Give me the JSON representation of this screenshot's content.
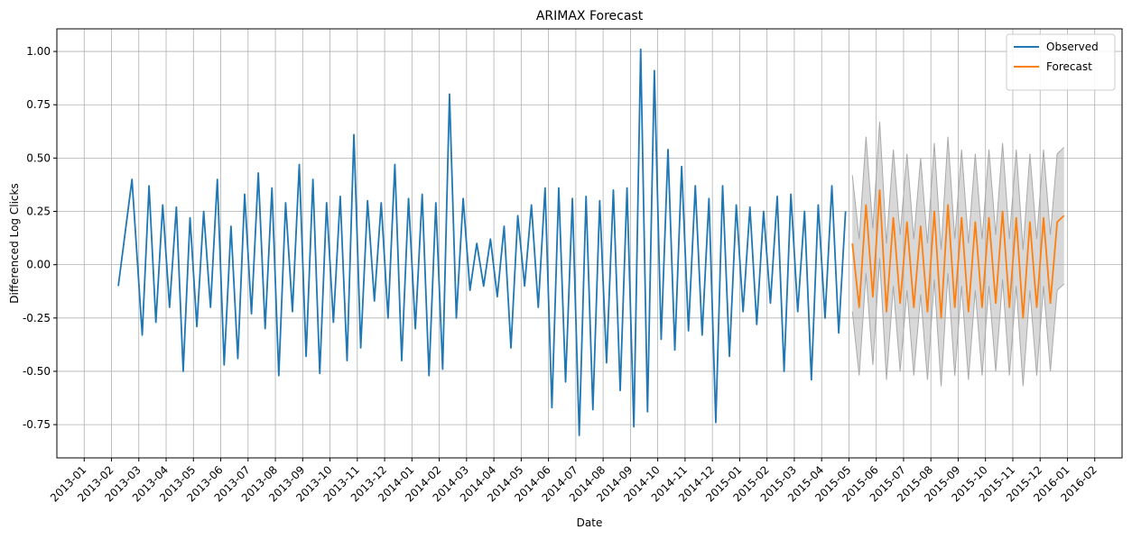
{
  "chart_data": {
    "type": "line",
    "title": "ARIMAX Forecast",
    "x_label": "Date",
    "y_label": "Differenced Log Clicks",
    "xlim": [
      "2012-12",
      "2016-03"
    ],
    "xticks": [
      "2013-01",
      "2013-02",
      "2013-03",
      "2013-04",
      "2013-05",
      "2013-06",
      "2013-07",
      "2013-08",
      "2013-09",
      "2013-10",
      "2013-11",
      "2013-12",
      "2014-01",
      "2014-02",
      "2014-03",
      "2014-04",
      "2014-05",
      "2014-06",
      "2014-07",
      "2014-08",
      "2014-09",
      "2014-10",
      "2014-11",
      "2014-12",
      "2015-01",
      "2015-02",
      "2015-03",
      "2015-04",
      "2015-05",
      "2015-06",
      "2015-07",
      "2015-08",
      "2015-09",
      "2015-10",
      "2015-11",
      "2015-12",
      "2016-01",
      "2016-02"
    ],
    "ylim": [
      -0.906,
      1.106
    ],
    "yticks": [
      -0.75,
      {
        "value": -0.5,
        "label": "-0.50"
      },
      -0.25,
      {
        "value": 0,
        "label": "0.00"
      },
      0.25,
      {
        "value": 0.5,
        "label": "0.50"
      },
      0.75,
      {
        "value": 1,
        "label": "1.00"
      }
    ],
    "grid": true,
    "legend": "upper right",
    "series": [
      {
        "name": "Observed",
        "color": "#1f77b4",
        "x": [
          "2013-02",
          "2013-02",
          "2013-03",
          "2013-03",
          "2013-03",
          "2013-03",
          "2013-04",
          "2013-04",
          "2013-04",
          "2013-04",
          "2013-05",
          "2013-05",
          "2013-05",
          "2013-05",
          "2013-06",
          "2013-06",
          "2013-06",
          "2013-06",
          "2013-07",
          "2013-07",
          "2013-07",
          "2013-07",
          "2013-08",
          "2013-08",
          "2013-08",
          "2013-08",
          "2013-09",
          "2013-09",
          "2013-09",
          "2013-09",
          "2013-10",
          "2013-10",
          "2013-10",
          "2013-10",
          "2013-11",
          "2013-11",
          "2013-11",
          "2013-11",
          "2013-12",
          "2013-12",
          "2013-12",
          "2013-12",
          "2014-01",
          "2014-01",
          "2014-01",
          "2014-01",
          "2014-02",
          "2014-02",
          "2014-02",
          "2014-02",
          "2014-03",
          "2014-03",
          "2014-03",
          "2014-03",
          "2014-04",
          "2014-04",
          "2014-04",
          "2014-04",
          "2014-05",
          "2014-05",
          "2014-05",
          "2014-05",
          "2014-06",
          "2014-06",
          "2014-06",
          "2014-06",
          "2014-07",
          "2014-07",
          "2014-07",
          "2014-07",
          "2014-08",
          "2014-08",
          "2014-08",
          "2014-08",
          "2014-09",
          "2014-09",
          "2014-09",
          "2014-09",
          "2014-10",
          "2014-10",
          "2014-10",
          "2014-10",
          "2014-11",
          "2014-11",
          "2014-11",
          "2014-11",
          "2014-12",
          "2014-12",
          "2014-12",
          "2014-12",
          "2015-01",
          "2015-01",
          "2015-01",
          "2015-01",
          "2015-02",
          "2015-02",
          "2015-02",
          "2015-02",
          "2015-03",
          "2015-03",
          "2015-03",
          "2015-03",
          "2015-04",
          "2015-04",
          "2015-04",
          "2015-04"
        ],
        "values": [
          -0.1,
          0.4,
          -0.33,
          0.37,
          -0.27,
          0.28,
          -0.2,
          0.27,
          -0.5,
          0.22,
          -0.29,
          0.25,
          -0.2,
          0.4,
          -0.47,
          0.18,
          -0.44,
          0.33,
          -0.23,
          0.43,
          -0.3,
          0.36,
          -0.52,
          0.29,
          -0.22,
          0.47,
          -0.43,
          0.4,
          -0.51,
          0.29,
          -0.27,
          0.32,
          -0.45,
          0.61,
          -0.39,
          0.3,
          -0.17,
          0.29,
          -0.25,
          0.47,
          -0.45,
          0.31,
          -0.3,
          0.33,
          -0.52,
          0.29,
          -0.49,
          0.8,
          -0.25,
          0.31,
          -0.12,
          0.1,
          -0.1,
          0.12,
          -0.15,
          0.18,
          -0.39,
          0.23,
          -0.1,
          0.28,
          -0.2,
          0.36,
          -0.67,
          0.36,
          -0.55,
          0.31,
          -0.8,
          0.32,
          -0.68,
          0.3,
          -0.46,
          0.35,
          -0.59,
          0.36,
          -0.76,
          1.01,
          -0.69,
          0.91,
          -0.35,
          0.54,
          -0.4,
          0.46,
          -0.31,
          0.37,
          -0.33,
          0.31,
          -0.74,
          0.37,
          -0.43,
          0.28,
          -0.22,
          0.27,
          -0.28,
          0.25,
          -0.18,
          0.32,
          -0.5,
          0.33,
          -0.22,
          0.25,
          -0.54,
          0.28,
          -0.25,
          0.37,
          -0.32,
          0.25
        ]
      },
      {
        "name": "Forecast",
        "color": "#ff7f0e",
        "band_color": "#a9a9a9",
        "x": [
          "2015-05",
          "2015-05",
          "2015-05",
          "2015-05",
          "2015-06",
          "2015-06",
          "2015-06",
          "2015-06",
          "2015-07",
          "2015-07",
          "2015-07",
          "2015-07",
          "2015-08",
          "2015-08",
          "2015-08",
          "2015-08",
          "2015-09",
          "2015-09",
          "2015-09",
          "2015-09",
          "2015-10",
          "2015-10",
          "2015-10",
          "2015-10",
          "2015-11",
          "2015-11",
          "2015-11",
          "2015-11",
          "2015-12",
          "2015-12",
          "2015-12",
          "2015-12"
        ],
        "values": [
          0.1,
          -0.2,
          0.28,
          -0.15,
          0.35,
          -0.22,
          0.22,
          -0.18,
          0.2,
          -0.2,
          0.18,
          -0.22,
          0.25,
          -0.25,
          0.28,
          -0.2,
          0.22,
          -0.22,
          0.2,
          -0.2,
          0.22,
          -0.18,
          0.25,
          -0.2,
          0.22,
          -0.25,
          0.2,
          -0.2,
          0.22,
          -0.18,
          0.2,
          0.23
        ],
        "lower": [
          -0.22,
          -0.52,
          -0.04,
          -0.47,
          0.03,
          -0.54,
          -0.1,
          -0.5,
          -0.12,
          -0.52,
          -0.14,
          -0.54,
          -0.07,
          -0.57,
          -0.04,
          -0.52,
          -0.1,
          -0.54,
          -0.12,
          -0.52,
          -0.1,
          -0.5,
          -0.07,
          -0.52,
          -0.1,
          -0.57,
          -0.12,
          -0.52,
          -0.1,
          -0.5,
          -0.12,
          -0.09
        ],
        "upper": [
          0.42,
          0.12,
          0.6,
          0.17,
          0.67,
          0.1,
          0.54,
          0.14,
          0.52,
          0.12,
          0.5,
          0.1,
          0.57,
          0.07,
          0.6,
          0.12,
          0.54,
          0.1,
          0.52,
          0.12,
          0.54,
          0.14,
          0.57,
          0.12,
          0.54,
          0.07,
          0.52,
          0.12,
          0.54,
          0.14,
          0.52,
          0.55
        ]
      }
    ]
  }
}
